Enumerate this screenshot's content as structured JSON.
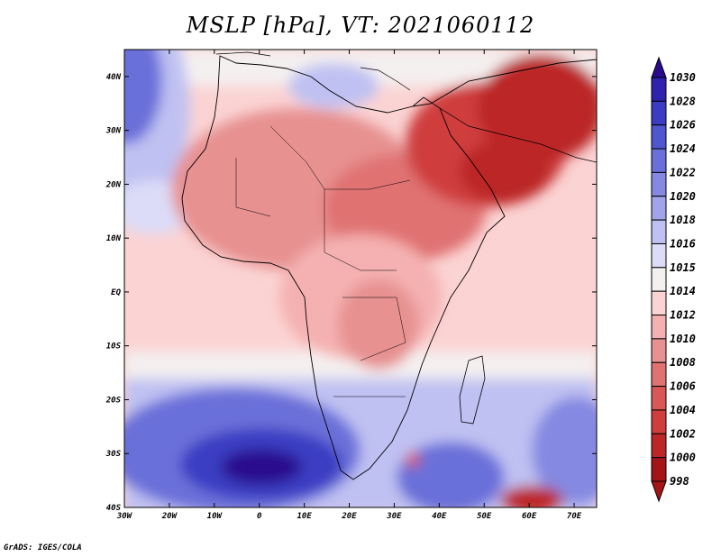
{
  "title": "MSLP [hPa], VT: 2021060112",
  "footer": "GrADS: IGES/COLA",
  "map": {
    "lon_range": [
      -30,
      75
    ],
    "lat_range": [
      -40,
      45
    ],
    "x_ticks": [
      "30W",
      "20W",
      "10W",
      "0",
      "10E",
      "20E",
      "30E",
      "40E",
      "50E",
      "60E",
      "70E"
    ],
    "y_ticks": [
      "40N",
      "30N",
      "20N",
      "10N",
      "EQ",
      "10S",
      "20S",
      "30S",
      "40S"
    ]
  },
  "colorbar": {
    "levels": [
      "1030",
      "1028",
      "1026",
      "1024",
      "1022",
      "1020",
      "1018",
      "1016",
      "1015",
      "1014",
      "1012",
      "1010",
      "1008",
      "1006",
      "1004",
      "1002",
      "1000",
      "998"
    ],
    "colors": [
      "#2b0a8f",
      "#2f22ad",
      "#3a3cc2",
      "#4f56cf",
      "#6a70d9",
      "#8589e1",
      "#a1a4ea",
      "#bfc1f2",
      "#dcdcf8",
      "#f4f0f0",
      "#fbd3d3",
      "#f5b1b1",
      "#e79191",
      "#e07272",
      "#d95757",
      "#cf3d3d",
      "#bc2626",
      "#a51515"
    ]
  }
}
